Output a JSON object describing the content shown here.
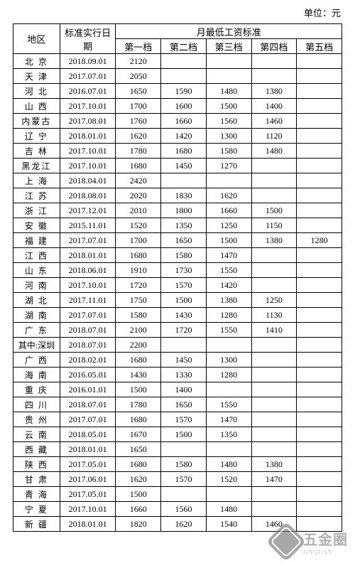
{
  "unit_label": "单位：元",
  "table": {
    "headers": {
      "region": "地区",
      "date": "标准实行日期",
      "monthly_group": "月最低工资标准",
      "tiers": [
        "第一档",
        "第二档",
        "第三档",
        "第四档",
        "第五档"
      ]
    },
    "rows": [
      {
        "region": "北 京",
        "date": "2018.09.01",
        "t1": "2120",
        "t2": "",
        "t3": "",
        "t4": "",
        "t5": ""
      },
      {
        "region": "天 津",
        "date": "2017.07.01",
        "t1": "2050",
        "t2": "",
        "t3": "",
        "t4": "",
        "t5": ""
      },
      {
        "region": "河 北",
        "date": "2016.07.01",
        "t1": "1650",
        "t2": "1590",
        "t3": "1480",
        "t4": "1380",
        "t5": ""
      },
      {
        "region": "山 西",
        "date": "2017.10.01",
        "t1": "1700",
        "t2": "1600",
        "t3": "1500",
        "t4": "1400",
        "t5": ""
      },
      {
        "region": "内蒙古",
        "date": "2017.08.01",
        "t1": "1760",
        "t2": "1660",
        "t3": "1560",
        "t4": "1460",
        "t5": ""
      },
      {
        "region": "辽 宁",
        "date": "2018.01.01",
        "t1": "1620",
        "t2": "1420",
        "t3": "1300",
        "t4": "1120",
        "t5": ""
      },
      {
        "region": "吉 林",
        "date": "2017.10.01",
        "t1": "1780",
        "t2": "1680",
        "t3": "1580",
        "t4": "1480",
        "t5": ""
      },
      {
        "region": "黑龙江",
        "date": "2017.10.01",
        "t1": "1680",
        "t2": "1450",
        "t3": "1270",
        "t4": "",
        "t5": ""
      },
      {
        "region": "上 海",
        "date": "2018.04.01",
        "t1": "2420",
        "t2": "",
        "t3": "",
        "t4": "",
        "t5": ""
      },
      {
        "region": "江 苏",
        "date": "2018.08.01",
        "t1": "2020",
        "t2": "1830",
        "t3": "1620",
        "t4": "",
        "t5": ""
      },
      {
        "region": "浙 江",
        "date": "2017.12.01",
        "t1": "2010",
        "t2": "1800",
        "t3": "1660",
        "t4": "1500",
        "t5": ""
      },
      {
        "region": "安 徽",
        "date": "2015.11.01",
        "t1": "1520",
        "t2": "1350",
        "t3": "1250",
        "t4": "1150",
        "t5": ""
      },
      {
        "region": "福 建",
        "date": "2017.07.01",
        "t1": "1700",
        "t2": "1650",
        "t3": "1500",
        "t4": "1380",
        "t5": "1280"
      },
      {
        "region": "江 西",
        "date": "2018.01.01",
        "t1": "1680",
        "t2": "1580",
        "t3": "1470",
        "t4": "",
        "t5": ""
      },
      {
        "region": "山 东",
        "date": "2018.06.01",
        "t1": "1910",
        "t2": "1730",
        "t3": "1550",
        "t4": "",
        "t5": ""
      },
      {
        "region": "河 南",
        "date": "2017.10.01",
        "t1": "1720",
        "t2": "1570",
        "t3": "1420",
        "t4": "",
        "t5": ""
      },
      {
        "region": "湖 北",
        "date": "2017.11.01",
        "t1": "1750",
        "t2": "1500",
        "t3": "1380",
        "t4": "1250",
        "t5": ""
      },
      {
        "region": "湖 南",
        "date": "2017.07.01",
        "t1": "1580",
        "t2": "1430",
        "t3": "1280",
        "t4": "1130",
        "t5": ""
      },
      {
        "region": "广 东",
        "date": "2018.07.01",
        "t1": "2100",
        "t2": "1720",
        "t3": "1550",
        "t4": "1410",
        "t5": ""
      },
      {
        "region": "其中:深圳",
        "date": "2018.07.01",
        "t1": "2200",
        "t2": "",
        "t3": "",
        "t4": "",
        "t5": "",
        "sp": true
      },
      {
        "region": "广 西",
        "date": "2018.02.01",
        "t1": "1680",
        "t2": "1450",
        "t3": "1300",
        "t4": "",
        "t5": ""
      },
      {
        "region": "海 南",
        "date": "2016.05.01",
        "t1": "1430",
        "t2": "1330",
        "t3": "1280",
        "t4": "",
        "t5": ""
      },
      {
        "region": "重 庆",
        "date": "2016.01.01",
        "t1": "1500",
        "t2": "1400",
        "t3": "",
        "t4": "",
        "t5": ""
      },
      {
        "region": "四 川",
        "date": "2018.07.01",
        "t1": "1780",
        "t2": "1650",
        "t3": "1550",
        "t4": "",
        "t5": ""
      },
      {
        "region": "贵 州",
        "date": "2017.07.01",
        "t1": "1680",
        "t2": "1570",
        "t3": "1470",
        "t4": "",
        "t5": ""
      },
      {
        "region": "云 南",
        "date": "2018.05.01",
        "t1": "1670",
        "t2": "1500",
        "t3": "1350",
        "t4": "",
        "t5": ""
      },
      {
        "region": "西 藏",
        "date": "2018.01.01",
        "t1": "1650",
        "t2": "",
        "t3": "",
        "t4": "",
        "t5": ""
      },
      {
        "region": "陕 西",
        "date": "2017.05.01",
        "t1": "1680",
        "t2": "1580",
        "t3": "1480",
        "t4": "1380",
        "t5": ""
      },
      {
        "region": "甘 肃",
        "date": "2017.06.01",
        "t1": "1620",
        "t2": "1570",
        "t3": "1520",
        "t4": "1470",
        "t5": ""
      },
      {
        "region": "青 海",
        "date": "2017.05.01",
        "t1": "1500",
        "t2": "",
        "t3": "",
        "t4": "",
        "t5": ""
      },
      {
        "region": "宁 夏",
        "date": "2017.10.01",
        "t1": "1660",
        "t2": "1560",
        "t3": "1480",
        "t4": "",
        "t5": ""
      },
      {
        "region": "新 疆",
        "date": "2018.01.01",
        "t1": "1820",
        "t2": "1620",
        "t3": "1540",
        "t4": "1460",
        "t5": ""
      }
    ]
  },
  "watermark": {
    "text": "五金圈",
    "sub": "JINQUAN"
  }
}
